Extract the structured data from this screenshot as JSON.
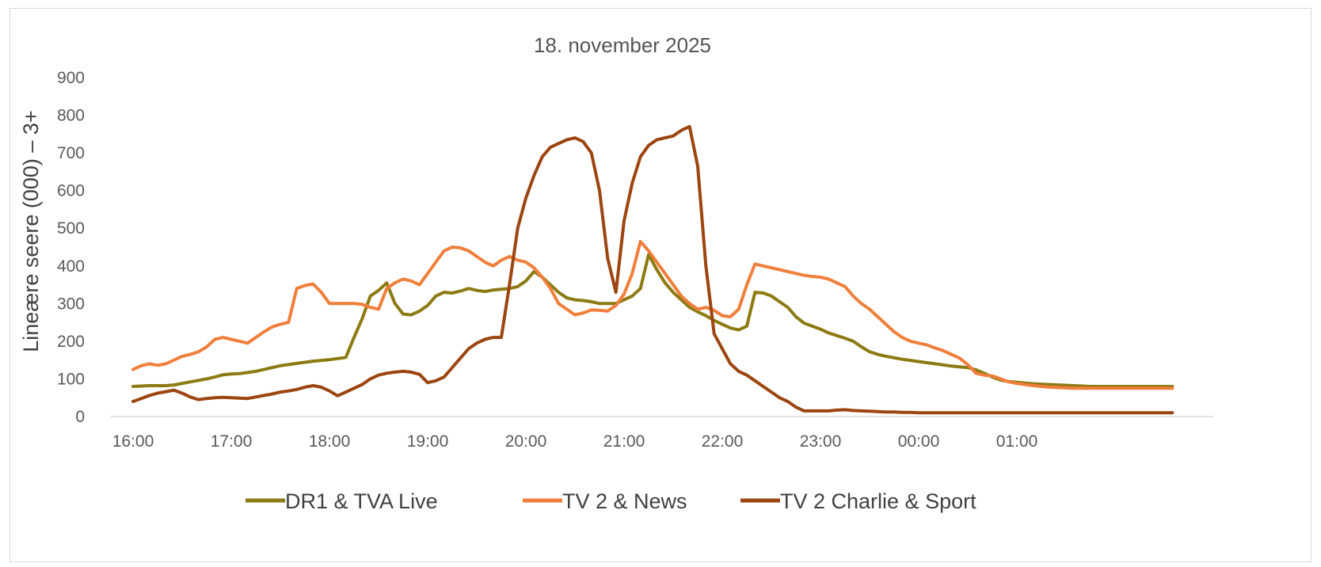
{
  "chart_data": {
    "type": "line",
    "title": "18. november 2025",
    "xlabel": "",
    "ylabel": "Lineære seere (000) – 3+",
    "ylim": [
      0,
      900
    ],
    "yticks": [
      0,
      100,
      200,
      300,
      400,
      500,
      600,
      700,
      800,
      900
    ],
    "xtick_labels": [
      "16:00",
      "17:00",
      "18:00",
      "19:00",
      "20:00",
      "21:00",
      "22:00",
      "23:00",
      "00:00",
      "01:00"
    ],
    "x_unit": "minutes after 16:00",
    "grid": false,
    "legend_position": "bottom",
    "x": [
      0,
      5,
      10,
      15,
      20,
      25,
      30,
      35,
      40,
      45,
      50,
      55,
      60,
      65,
      70,
      75,
      80,
      85,
      90,
      95,
      100,
      105,
      110,
      115,
      120,
      125,
      130,
      135,
      140,
      145,
      150,
      155,
      160,
      165,
      170,
      175,
      180,
      185,
      190,
      195,
      200,
      205,
      210,
      215,
      220,
      225,
      230,
      235,
      240,
      245,
      250,
      255,
      260,
      265,
      270,
      275,
      280,
      285,
      290,
      295,
      300,
      305,
      310,
      315,
      320,
      325,
      330,
      335,
      340,
      345,
      350,
      355,
      360,
      365,
      370,
      375,
      380,
      385,
      390,
      395,
      400,
      405,
      410,
      415,
      420,
      425,
      430,
      435,
      440,
      445,
      450,
      455,
      460,
      465,
      470,
      475,
      480,
      485,
      490,
      495,
      500,
      505,
      510,
      515,
      520,
      525,
      530,
      535,
      540,
      545,
      550,
      555,
      560,
      565,
      570,
      575,
      580,
      585,
      590,
      595,
      600,
      605,
      610,
      615,
      620,
      625,
      630,
      635
    ],
    "series": [
      {
        "name": "DR1 & TVA Live",
        "color": "#8c7a12",
        "values": [
          80,
          81,
          82,
          82,
          82,
          84,
          88,
          92,
          96,
          100,
          105,
          111,
          113,
          114,
          117,
          120,
          125,
          130,
          135,
          138,
          141,
          144,
          147,
          149,
          151,
          154,
          157,
          210,
          260,
          320,
          335,
          355,
          300,
          272,
          270,
          280,
          295,
          320,
          330,
          328,
          333,
          340,
          335,
          332,
          336,
          338,
          340,
          345,
          360,
          385,
          370,
          350,
          330,
          315,
          310,
          308,
          305,
          300,
          300,
          300,
          310,
          320,
          340,
          430,
          390,
          355,
          330,
          310,
          290,
          278,
          268,
          255,
          245,
          235,
          230,
          240,
          330,
          328,
          320,
          305,
          290,
          265,
          248,
          240,
          232,
          222,
          215,
          208,
          200,
          185,
          172,
          165,
          160,
          156,
          152,
          149,
          146,
          143,
          140,
          137,
          134,
          132,
          130,
          124,
          115,
          105,
          97,
          93,
          91,
          89,
          87,
          86,
          85,
          84,
          83,
          82,
          81,
          80,
          80,
          80,
          80,
          80,
          80,
          80,
          80,
          80,
          80,
          80
        ]
      },
      {
        "name": "TV 2 & News",
        "color": "#f07f3c",
        "values": [
          125,
          135,
          140,
          136,
          140,
          150,
          160,
          165,
          172,
          185,
          205,
          210,
          205,
          200,
          195,
          210,
          225,
          238,
          245,
          250,
          340,
          348,
          352,
          330,
          300,
          300,
          300,
          300,
          298,
          290,
          285,
          340,
          355,
          365,
          360,
          350,
          380,
          410,
          440,
          450,
          448,
          440,
          425,
          410,
          400,
          415,
          425,
          415,
          410,
          395,
          370,
          340,
          300,
          285,
          270,
          275,
          283,
          282,
          280,
          295,
          325,
          380,
          465,
          440,
          410,
          380,
          350,
          320,
          300,
          285,
          290,
          282,
          268,
          265,
          285,
          350,
          405,
          400,
          395,
          390,
          385,
          380,
          375,
          372,
          370,
          365,
          355,
          345,
          320,
          300,
          285,
          265,
          245,
          225,
          210,
          200,
          195,
          190,
          182,
          175,
          165,
          155,
          138,
          115,
          110,
          108,
          100,
          92,
          88,
          85,
          82,
          80,
          78,
          77,
          76,
          75,
          75,
          75,
          75,
          75,
          75,
          75,
          75,
          75,
          75,
          75,
          75,
          75
        ]
      },
      {
        "name": "TV 2 Charlie & Sport",
        "color": "#9c4511",
        "values": [
          40,
          48,
          56,
          62,
          66,
          70,
          62,
          52,
          45,
          48,
          50,
          51,
          50,
          49,
          48,
          52,
          56,
          60,
          65,
          68,
          72,
          78,
          82,
          78,
          68,
          55,
          65,
          75,
          85,
          100,
          110,
          115,
          118,
          120,
          118,
          112,
          90,
          95,
          105,
          130,
          155,
          180,
          195,
          205,
          210,
          210,
          350,
          500,
          580,
          640,
          690,
          715,
          725,
          735,
          740,
          730,
          700,
          600,
          420,
          330,
          520,
          620,
          690,
          720,
          735,
          740,
          745,
          760,
          770,
          665,
          400,
          220,
          180,
          140,
          120,
          110,
          95,
          80,
          65,
          50,
          40,
          25,
          15,
          15,
          15,
          15,
          17,
          18,
          16,
          15,
          14,
          13,
          12,
          12,
          11,
          11,
          10,
          10,
          10,
          10,
          10,
          10,
          10,
          10,
          10,
          10,
          10,
          10,
          10,
          10,
          10,
          10,
          10,
          10,
          10,
          10,
          10,
          10,
          10,
          10,
          10,
          10,
          10,
          10,
          10,
          10,
          10,
          10
        ]
      }
    ]
  }
}
